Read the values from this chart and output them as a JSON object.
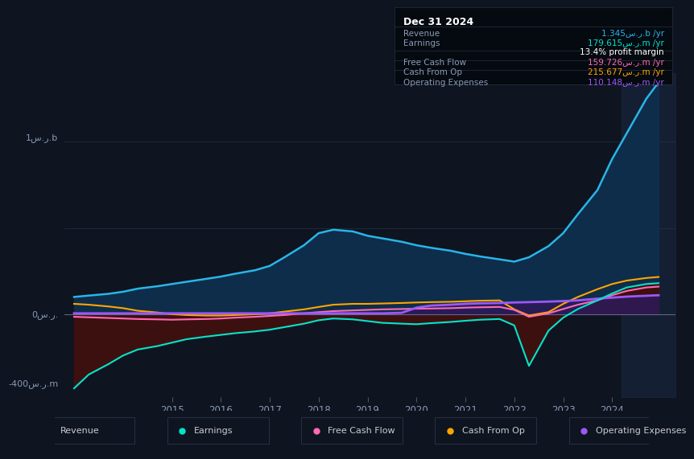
{
  "bg_color": "#0e1420",
  "plot_bg_color": "#0e1420",
  "grid_color": "#2a3a4a",
  "zero_line_color": "#8a9ab5",
  "title": "Dec 31 2024",
  "ylabel_top": "1س.ر.b",
  "ylabel_bottom": "-400س.ر.m",
  "ylabel_zero": "0س.ر.",
  "years": [
    2013.0,
    2013.3,
    2013.7,
    2014.0,
    2014.3,
    2014.7,
    2015.0,
    2015.3,
    2015.7,
    2016.0,
    2016.3,
    2016.7,
    2017.0,
    2017.3,
    2017.7,
    2018.0,
    2018.3,
    2018.7,
    2019.0,
    2019.3,
    2019.7,
    2020.0,
    2020.3,
    2020.7,
    2021.0,
    2021.3,
    2021.7,
    2022.0,
    2022.3,
    2022.7,
    2023.0,
    2023.3,
    2023.7,
    2024.0,
    2024.3,
    2024.7,
    2024.95
  ],
  "revenue": [
    100,
    108,
    118,
    130,
    148,
    162,
    175,
    188,
    205,
    218,
    235,
    255,
    280,
    330,
    400,
    470,
    490,
    480,
    455,
    440,
    420,
    400,
    385,
    368,
    350,
    335,
    318,
    305,
    330,
    395,
    470,
    580,
    720,
    900,
    1050,
    1250,
    1345
  ],
  "earnings": [
    -430,
    -350,
    -290,
    -240,
    -205,
    -185,
    -165,
    -145,
    -130,
    -120,
    -110,
    -100,
    -90,
    -75,
    -55,
    -35,
    -25,
    -30,
    -40,
    -50,
    -55,
    -58,
    -52,
    -45,
    -38,
    -32,
    -28,
    -65,
    -300,
    -95,
    -20,
    30,
    80,
    120,
    155,
    175,
    180
  ],
  "free_cash_flow": [
    -15,
    -18,
    -22,
    -25,
    -28,
    -30,
    -32,
    -30,
    -28,
    -25,
    -20,
    -15,
    -10,
    -5,
    5,
    12,
    18,
    22,
    25,
    28,
    30,
    32,
    33,
    35,
    38,
    40,
    42,
    25,
    -15,
    5,
    30,
    55,
    80,
    110,
    135,
    155,
    160
  ],
  "cash_from_op": [
    60,
    55,
    45,
    35,
    20,
    10,
    0,
    -5,
    -8,
    -8,
    -5,
    0,
    5,
    15,
    28,
    42,
    55,
    60,
    60,
    62,
    65,
    68,
    70,
    72,
    75,
    78,
    80,
    28,
    -8,
    12,
    60,
    100,
    145,
    175,
    195,
    210,
    216
  ],
  "operating_expenses": [
    5,
    5,
    5,
    5,
    5,
    5,
    5,
    5,
    5,
    5,
    5,
    5,
    5,
    5,
    5,
    5,
    5,
    5,
    5,
    5,
    8,
    38,
    50,
    55,
    60,
    63,
    65,
    68,
    70,
    73,
    76,
    80,
    90,
    96,
    102,
    107,
    110
  ],
  "revenue_color": "#29b5e8",
  "revenue_fill": "#0e2d4a",
  "earnings_color": "#00e5cc",
  "earnings_fill": "#3d1010",
  "free_cash_flow_color": "#ff69b4",
  "cash_from_op_color": "#ffa500",
  "operating_expenses_color": "#9b59f5",
  "operating_expenses_fill": "#2d1a5a",
  "legend_items": [
    {
      "label": "Revenue",
      "color": "#29b5e8"
    },
    {
      "label": "Earnings",
      "color": "#00e5cc"
    },
    {
      "label": "Free Cash Flow",
      "color": "#ff69b4"
    },
    {
      "label": "Cash From Op",
      "color": "#ffa500"
    },
    {
      "label": "Operating Expenses",
      "color": "#9b59f5"
    }
  ],
  "info_rows": [
    {
      "label": "Revenue",
      "value": "1.345س.ر.b /yr",
      "color": "#29b5e8",
      "sep_above": false
    },
    {
      "label": "Earnings",
      "value": "179.615س.ر.m /yr",
      "color": "#00e5cc",
      "sep_above": false
    },
    {
      "label": "",
      "value": "13.4% profit margin",
      "color": "#ffffff",
      "sep_above": false
    },
    {
      "label": "Free Cash Flow",
      "value": "159.726س.ر.m /yr",
      "color": "#ff69b4",
      "sep_above": true
    },
    {
      "label": "Cash From Op",
      "value": "215.677س.ر.m /yr",
      "color": "#ffa500",
      "sep_above": true
    },
    {
      "label": "Operating Expenses",
      "value": "110.148س.ر.m /yr",
      "color": "#9b59f5",
      "sep_above": true
    }
  ],
  "ylim_min": -480,
  "ylim_max": 1400,
  "xlim_min": 2012.8,
  "xlim_max": 2025.3,
  "shade_start": 2024.2,
  "shade_end": 2025.3
}
